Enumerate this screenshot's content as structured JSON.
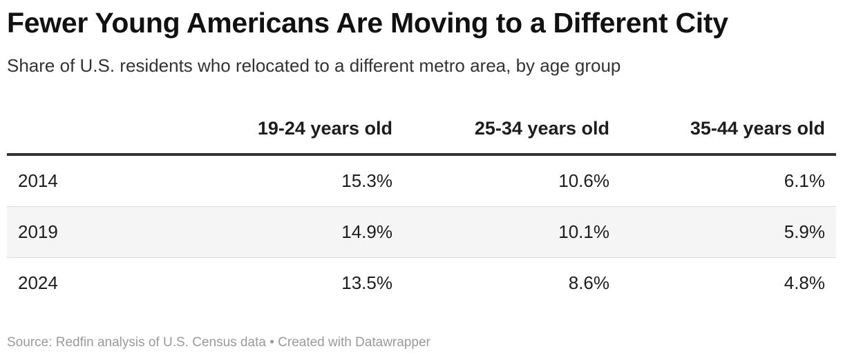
{
  "title": "Fewer Young Americans Are Moving to a Different City",
  "subtitle": "Share of U.S. residents who relocated to a different metro area, by age group",
  "footer": {
    "source": "Source: Redfin analysis of U.S. Census data",
    "separator": "•",
    "created": "Created with Datawrapper"
  },
  "colors": {
    "header_rule": "#333333",
    "row_divider": "#dcdcdc",
    "alt_row_bg": "#f5f5f5",
    "footer_text": "#9a9a9a"
  },
  "chart_data": {
    "type": "table",
    "columns": [
      "",
      "19-24 years old",
      "25-34 years old",
      "35-44 years old"
    ],
    "rows": [
      {
        "year": "2014",
        "cells": [
          "15.3%",
          "10.6%",
          "6.1%"
        ],
        "values": [
          15.3,
          10.6,
          6.1
        ]
      },
      {
        "year": "2019",
        "cells": [
          "14.9%",
          "10.1%",
          "5.9%"
        ],
        "values": [
          14.9,
          10.1,
          5.9
        ]
      },
      {
        "year": "2024",
        "cells": [
          "13.5%",
          "8.6%",
          "4.8%"
        ],
        "values": [
          13.5,
          8.6,
          4.8
        ]
      }
    ]
  }
}
